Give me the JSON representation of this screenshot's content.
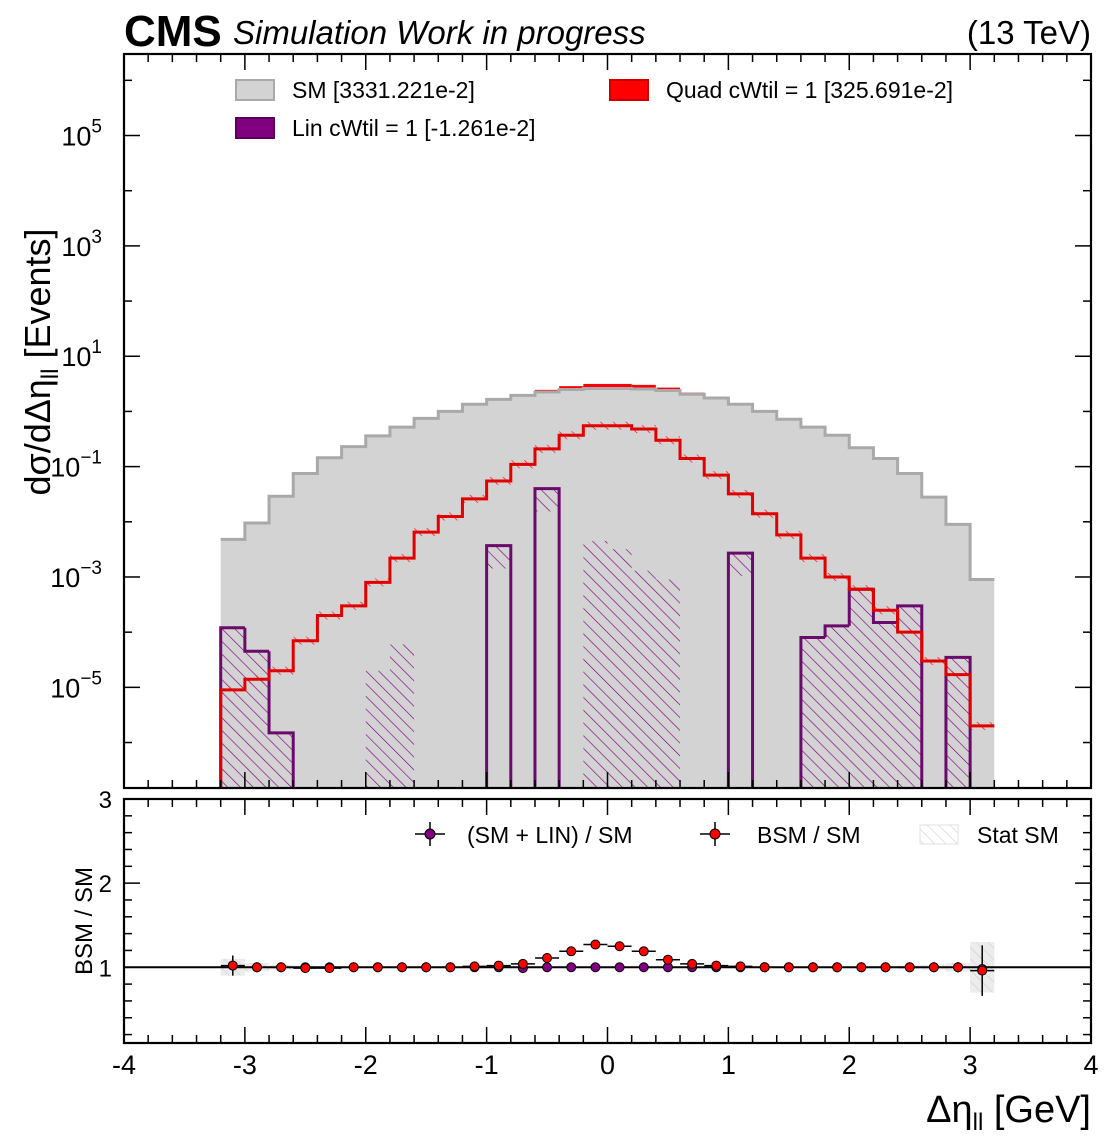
{
  "header": {
    "cms": "CMS",
    "subtitle": "Simulation Work in progress",
    "energy": "(13 TeV)"
  },
  "axes": {
    "ylabel_main": "dσ/dΔη",
    "ylabel_main_sub": "ll",
    "ylabel_main_unit": " [Events]",
    "ylabel_ratio": "BSM / SM",
    "xlabel": "Δη",
    "xlabel_sub": "ll",
    "xlabel_unit": " [GeV]"
  },
  "legend": {
    "sm": "SM [3331.221e-2]",
    "quad": "Quad cWtil = 1 [325.691e-2]",
    "lin": "Lin cWtil = 1 [-1.261e-2]",
    "ratio_lin": "(SM + LIN) / SM",
    "ratio_bsm": "BSM / SM",
    "ratio_stat": "Stat SM"
  },
  "colors": {
    "sm_fill": "#d3d3d3",
    "sm_line": "#a9a9a9",
    "quad": "#ff0000",
    "quad_line": "#e00000",
    "lin": "#800080",
    "lin_line": "#6a0a6a"
  },
  "chart_data": [
    {
      "type": "bar",
      "histtype": "step/stack",
      "log_y": true,
      "bin_edges": [
        -3.2,
        -3.0,
        -2.8,
        -2.6,
        -2.4,
        -2.2,
        -2.0,
        -1.8,
        -1.6,
        -1.4,
        -1.2,
        -1.0,
        -0.8,
        -0.6,
        -0.4,
        -0.2,
        0.0,
        0.2,
        0.4,
        0.6,
        0.8,
        1.0,
        1.2,
        1.4,
        1.6,
        1.8,
        2.0,
        2.2,
        2.4,
        2.6,
        2.8,
        3.0,
        3.2
      ],
      "xlim": [
        -4,
        4
      ],
      "ylim": [
        1.5e-07,
        3000000.0
      ],
      "x_ticks": [
        "-4",
        "-3",
        "-2",
        "-1",
        "0",
        "1",
        "2",
        "3",
        "4"
      ],
      "y_ticks": [
        {
          "base": "10",
          "exp": "−5"
        },
        {
          "base": "10",
          "exp": "−3"
        },
        {
          "base": "10",
          "exp": "−1"
        },
        {
          "base": "10",
          "exp": "1"
        },
        {
          "base": "10",
          "exp": "3"
        },
        {
          "base": "10",
          "exp": "5"
        }
      ],
      "series": [
        {
          "name": "SM [3331.221e-2]",
          "values": [
            0.0048,
            0.0095,
            0.029,
            0.075,
            0.145,
            0.23,
            0.36,
            0.52,
            0.75,
            1.0,
            1.35,
            1.65,
            1.95,
            2.25,
            2.5,
            2.6,
            2.6,
            2.55,
            2.4,
            2.05,
            1.75,
            1.35,
            1.0,
            0.72,
            0.52,
            0.37,
            0.22,
            0.14,
            0.075,
            0.028,
            0.009,
            0.0009
          ]
        },
        {
          "name": "Quad cWtil = 1 [325.691e-2]",
          "values": [
            9e-06,
            1.4e-05,
            2e-05,
            7e-05,
            0.0002,
            0.0003,
            0.0008,
            0.0022,
            0.0065,
            0.0125,
            0.026,
            0.055,
            0.11,
            0.21,
            0.37,
            0.55,
            0.55,
            0.48,
            0.3,
            0.14,
            0.07,
            0.032,
            0.014,
            0.0058,
            0.0022,
            0.001,
            0.0006,
            0.00025,
            0.0001,
            3e-05,
            1.7e-05,
            2e-06
          ]
        },
        {
          "name": "Lin cWtil = 1 [-1.261e-2]",
          "values": [
            0.00012,
            4.5e-05,
            1.5e-06,
            null,
            null,
            null,
            -2e-05,
            -6e-05,
            null,
            null,
            null,
            0.0037,
            null,
            0.04,
            null,
            -0.0045,
            -0.0032,
            -0.0013,
            -0.0009,
            null,
            null,
            0.0027,
            null,
            null,
            8e-05,
            0.00013,
            0.0006,
            0.00015,
            0.0003,
            null,
            3.5e-05,
            null
          ]
        }
      ]
    },
    {
      "type": "scatter",
      "ylabel": "BSM / SM",
      "xlim": [
        -4,
        4
      ],
      "ylim": [
        0.1,
        3
      ],
      "y_ticks": [
        "1",
        "2",
        "3"
      ],
      "x": [
        -3.1,
        -2.9,
        -2.7,
        -2.5,
        -2.3,
        -2.1,
        -1.9,
        -1.7,
        -1.5,
        -1.3,
        -1.1,
        -0.9,
        -0.7,
        -0.5,
        -0.3,
        -0.1,
        0.1,
        0.3,
        0.5,
        0.7,
        0.9,
        1.1,
        1.3,
        1.5,
        1.7,
        1.9,
        2.1,
        2.3,
        2.5,
        2.7,
        2.9,
        3.1
      ],
      "series": [
        {
          "name": "(SM + LIN) / SM",
          "values": [
            1.02,
            1.0,
            1.0,
            1.0,
            1.0,
            1.0,
            1.0,
            1.0,
            1.0,
            1.0,
            1.0,
            1.0,
            0.99,
            1.0,
            1.0,
            1.0,
            1.0,
            1.0,
            1.0,
            1.0,
            1.0,
            1.0,
            1.0,
            1.0,
            1.0,
            1.0,
            1.0,
            1.0,
            1.0,
            1.0,
            1.0,
            0.98
          ],
          "errors": [
            0.12,
            0.05,
            0.02,
            0.02,
            0.01,
            0.01,
            0.01,
            0.01,
            0.01,
            0.01,
            0.01,
            0.01,
            0.01,
            0.01,
            0.01,
            0.01,
            0.01,
            0.01,
            0.01,
            0.01,
            0.01,
            0.01,
            0.01,
            0.01,
            0.01,
            0.01,
            0.01,
            0.01,
            0.02,
            0.03,
            0.06,
            0.3
          ]
        },
        {
          "name": "BSM / SM",
          "values": [
            1.02,
            1.0,
            1.0,
            0.99,
            0.99,
            1.0,
            1.0,
            1.0,
            1.0,
            1.0,
            1.01,
            1.02,
            1.04,
            1.11,
            1.19,
            1.27,
            1.25,
            1.19,
            1.09,
            1.04,
            1.02,
            1.01,
            1.0,
            1.0,
            1.0,
            1.0,
            1.0,
            1.0,
            1.0,
            1.0,
            1.0,
            0.96
          ],
          "errors": [
            0.12,
            0.05,
            0.02,
            0.02,
            0.01,
            0.01,
            0.01,
            0.01,
            0.01,
            0.01,
            0.01,
            0.01,
            0.01,
            0.01,
            0.01,
            0.01,
            0.01,
            0.01,
            0.01,
            0.01,
            0.01,
            0.01,
            0.01,
            0.01,
            0.01,
            0.01,
            0.01,
            0.01,
            0.02,
            0.03,
            0.06,
            0.3
          ]
        },
        {
          "name": "Stat SM",
          "values": [
            0.1,
            0.05,
            0.03,
            0.02,
            0.015,
            0.012,
            0.01,
            0.01,
            0.01,
            0.01,
            0.01,
            0.01,
            0.01,
            0.01,
            0.01,
            0.01,
            0.01,
            0.01,
            0.01,
            0.01,
            0.01,
            0.01,
            0.01,
            0.01,
            0.01,
            0.01,
            0.012,
            0.015,
            0.02,
            0.03,
            0.05,
            0.3
          ]
        }
      ]
    }
  ]
}
